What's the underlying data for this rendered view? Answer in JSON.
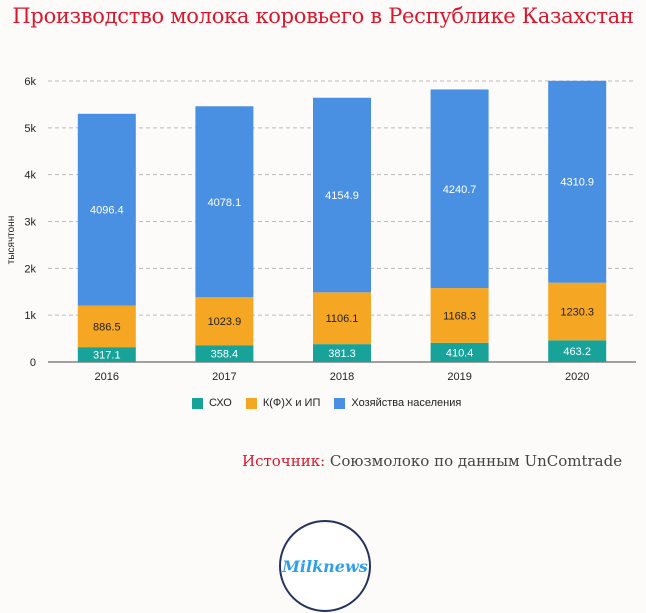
{
  "chart_data": {
    "type": "bar",
    "stacked": true,
    "title": "Производство молока коровьего в Республике Казахстан",
    "xlabel": "",
    "ylabel": "тысячтонн",
    "ylim": [
      0,
      6000
    ],
    "yticks": [
      "0",
      "1k",
      "2k",
      "3k",
      "4k",
      "5k",
      "6k"
    ],
    "categories": [
      "2016",
      "2017",
      "2018",
      "2019",
      "2020"
    ],
    "series": [
      {
        "name": "СХО",
        "color": "#17a29a",
        "values": [
          317.1,
          358.4,
          381.3,
          410.4,
          463.2
        ]
      },
      {
        "name": "К(Ф)Х и ИП",
        "color": "#f5a623",
        "values": [
          886.5,
          1023.9,
          1106.1,
          1168.3,
          1230.3
        ]
      },
      {
        "name": "Хозяйства населения",
        "color": "#4a90e2",
        "values": [
          4096.4,
          4078.1,
          4154.9,
          4240.7,
          4310.9
        ]
      }
    ],
    "grid": true,
    "legend": "bottom"
  },
  "source": {
    "label": "Источник:",
    "text": " Союзмолоко по данным UnComtrade"
  },
  "logo": "Milknews"
}
